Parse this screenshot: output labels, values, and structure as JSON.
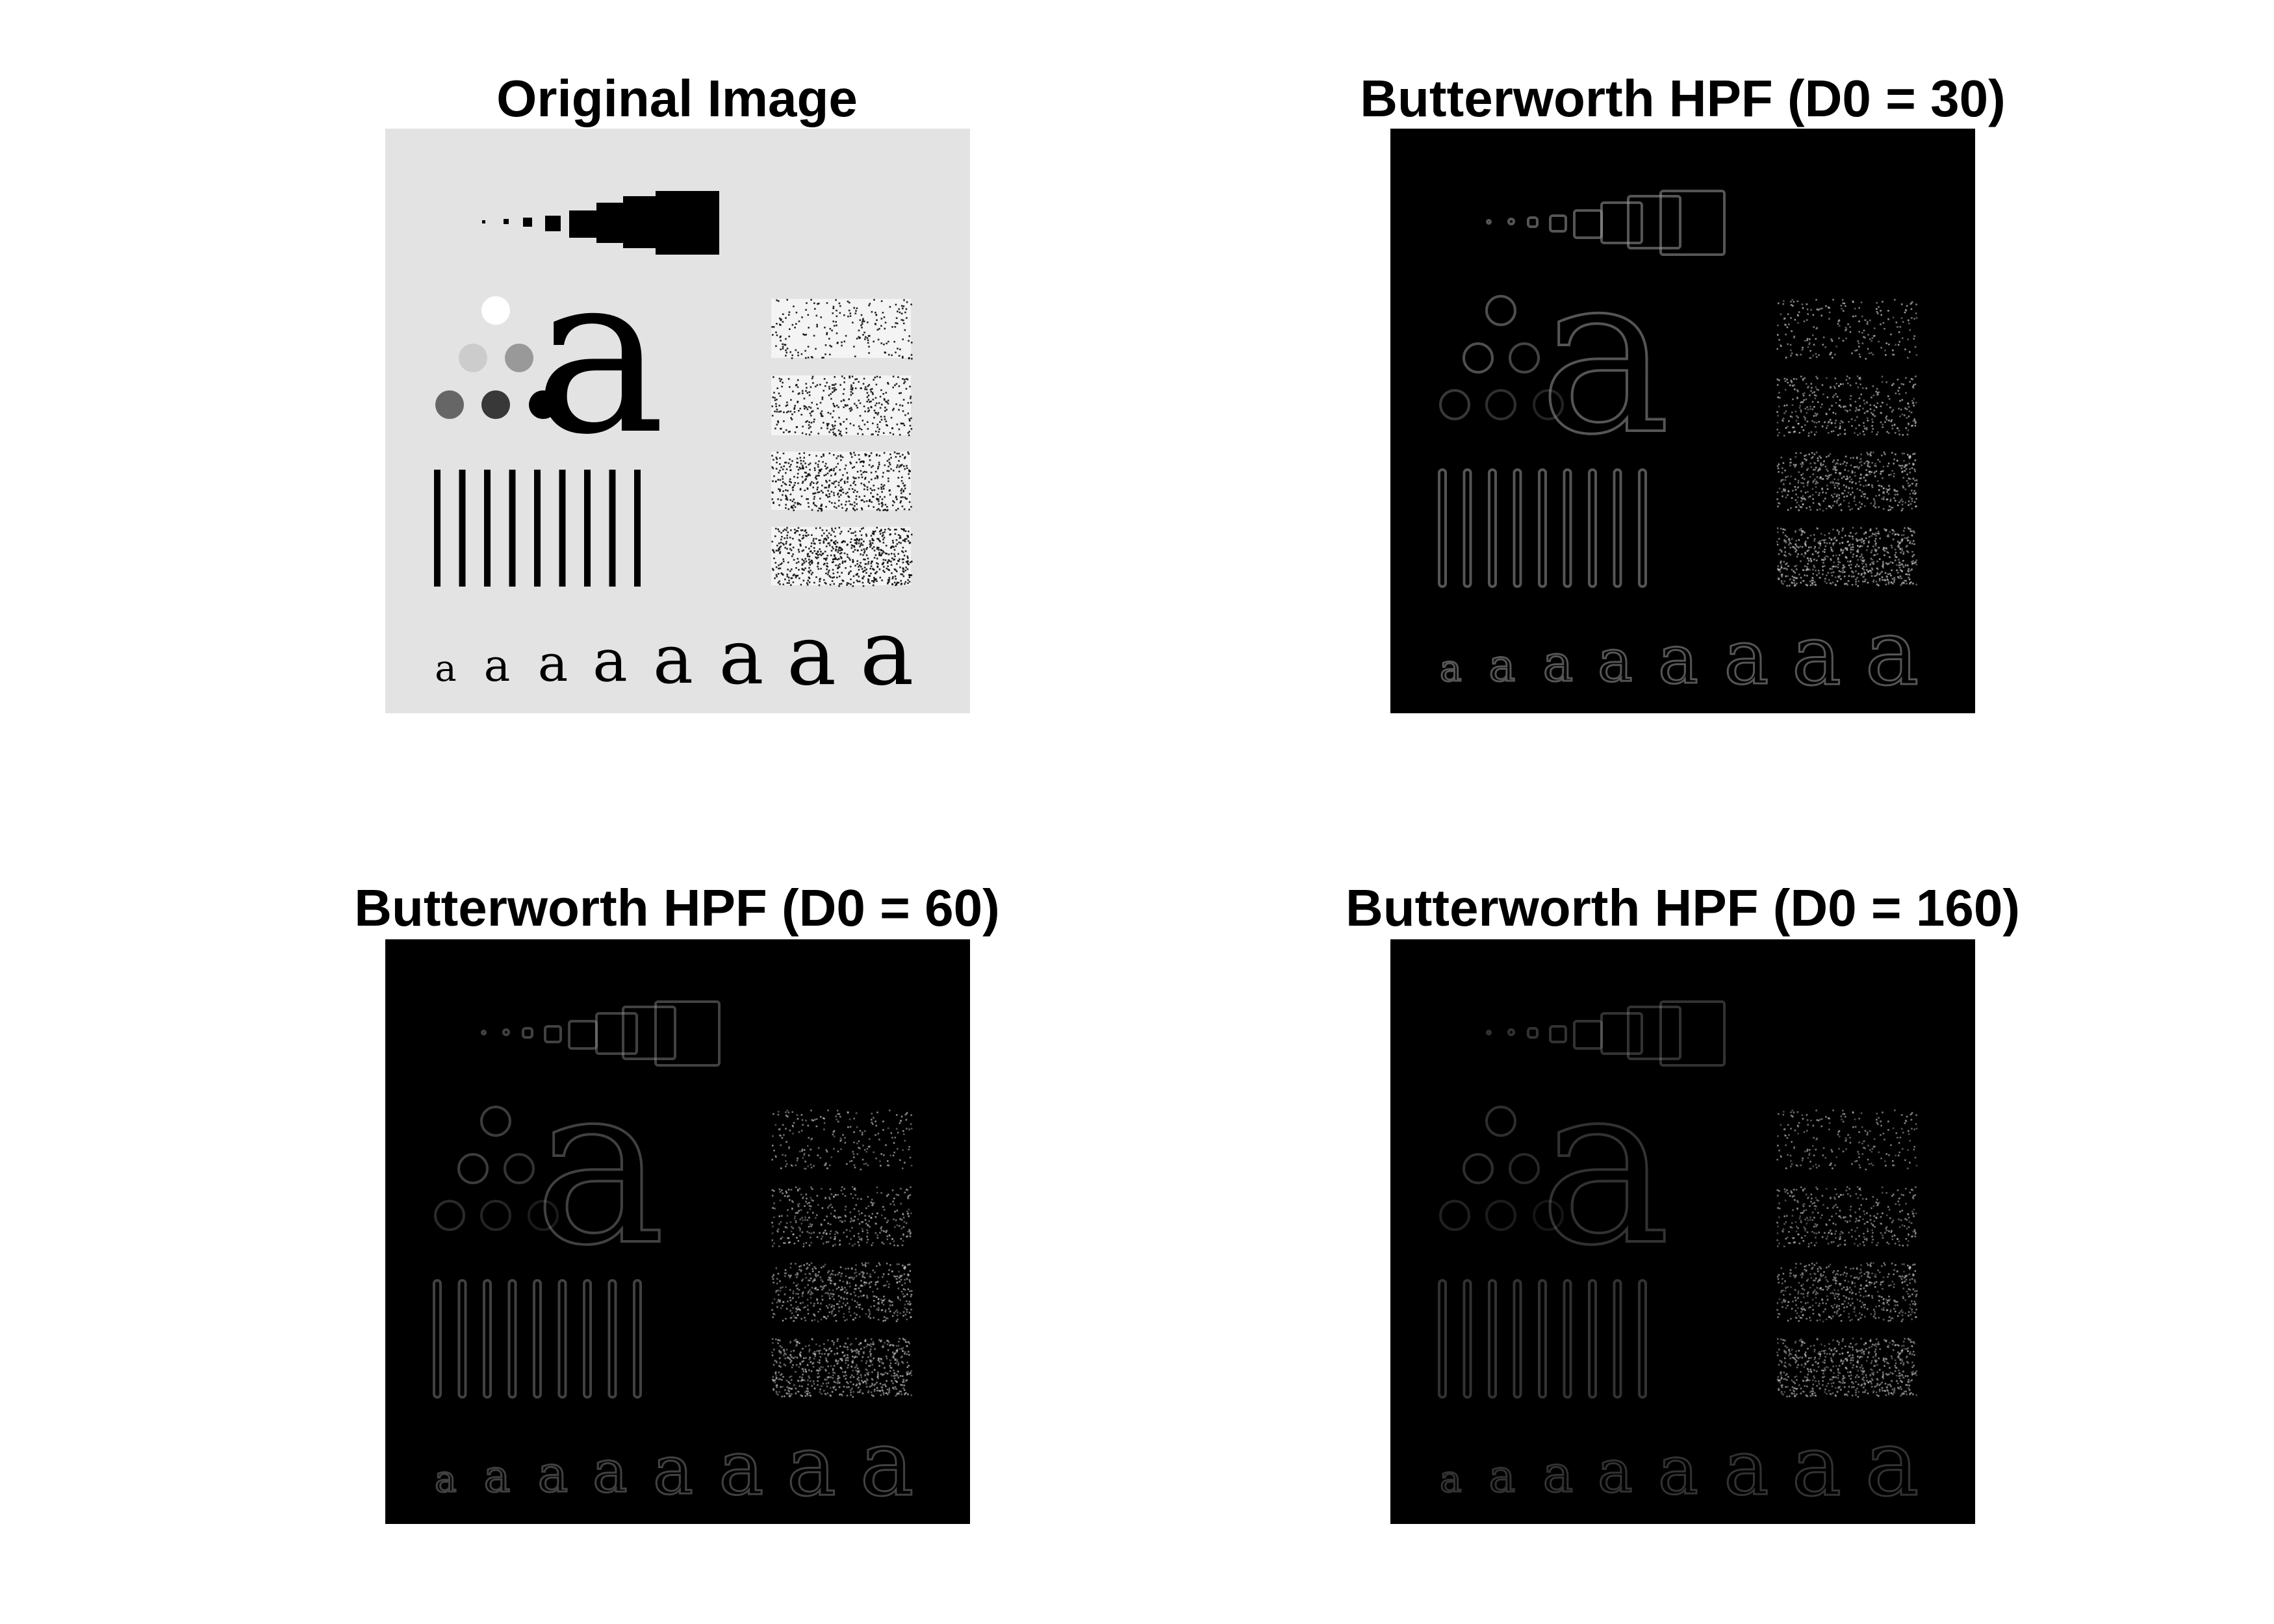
{
  "figure": {
    "panels": [
      {
        "id": "original",
        "title": "Original Image",
        "mode": "original"
      },
      {
        "id": "hpf30",
        "title": "Butterworth HPF (D0 = 30)",
        "mode": "edge",
        "edge_brightness": 0.55,
        "noise_brightness": 0.75
      },
      {
        "id": "hpf60",
        "title": "Butterworth HPF (D0 = 60)",
        "mode": "edge",
        "edge_brightness": 0.42,
        "noise_brightness": 0.7
      },
      {
        "id": "hpf160",
        "title": "Butterworth HPF (D0 = 160)",
        "mode": "edge",
        "edge_brightness": 0.32,
        "noise_brightness": 0.65
      }
    ],
    "colors": {
      "original_background": "#e3e3e3",
      "original_foreground": "#000000",
      "filtered_background": "#000000",
      "edge": "#9a9a9a",
      "noise_dot": "#cfcfcf"
    }
  }
}
